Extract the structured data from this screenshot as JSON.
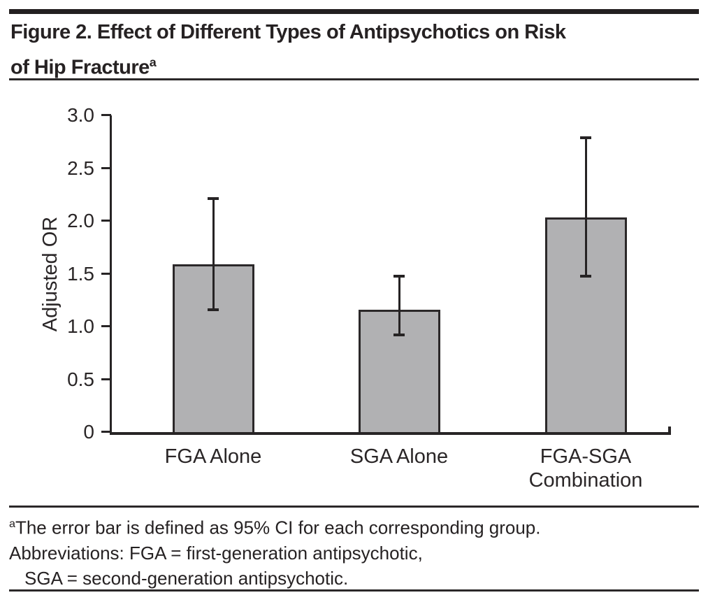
{
  "figure": {
    "title_lines": [
      "Figure 2. Effect of Different Types of Antipsychotics on Risk",
      "of Hip Fracture"
    ],
    "title_superscript": "a"
  },
  "footnote": {
    "marker": "a",
    "line1": "The error bar is defined as 95% CI for each corresponding group.",
    "line2": "Abbreviations: FGA = first-generation antipsychotic,",
    "line3": "SGA = second-generation antipsychotic."
  },
  "chart_data": {
    "type": "bar",
    "title": "",
    "categories": [
      "FGA Alone",
      "SGA Alone",
      "FGA-SGA Combination"
    ],
    "values": [
      1.59,
      1.16,
      2.03
    ],
    "error_bars_95ci": {
      "low": [
        1.16,
        0.92,
        1.48
      ],
      "high": [
        2.21,
        1.48,
        2.79
      ]
    },
    "xlabel": "",
    "ylabel": "Adjusted OR",
    "ylim": [
      0,
      3.0
    ],
    "yticks": [
      {
        "value": 0,
        "label": "0"
      },
      {
        "value": 0.5,
        "label": "0.5"
      },
      {
        "value": 1.0,
        "label": "1.0"
      },
      {
        "value": 1.5,
        "label": "1.5"
      },
      {
        "value": 2.0,
        "label": "2.0"
      },
      {
        "value": 2.5,
        "label": "2.5"
      },
      {
        "value": 3.0,
        "label": "3.0"
      }
    ],
    "grid": false,
    "legend": false,
    "bar_color": "#b1b1b3",
    "bar_border_color": "#2b2829",
    "axis_color": "#272425",
    "text_color": "#2a2627"
  }
}
